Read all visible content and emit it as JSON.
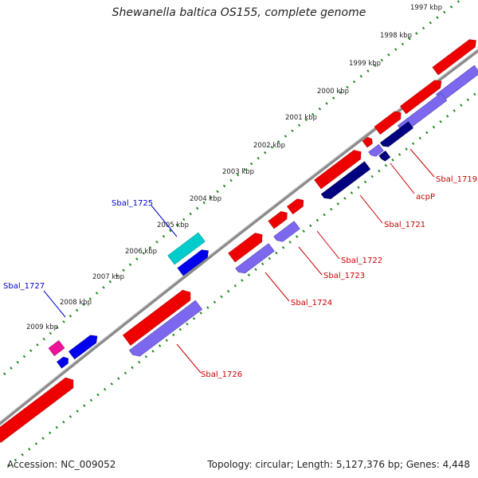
{
  "header": {
    "title": "Shewanella baltica OS155, complete genome"
  },
  "footer": {
    "accession": "Accession: NC_009052",
    "summary": "Topology: circular; Length: 5,127,376 bp; Genes: 4,448"
  },
  "ruler": [
    {
      "label": "1997 kbp"
    },
    {
      "label": "1998 kbp"
    },
    {
      "label": "1999 kbp"
    },
    {
      "label": "2000 kbp"
    },
    {
      "label": "2001 kbp"
    },
    {
      "label": "2002 kbp"
    },
    {
      "label": "2003 kbp"
    },
    {
      "label": "2004 kbp"
    },
    {
      "label": "2005 kbp"
    },
    {
      "label": "2006 kbp"
    },
    {
      "label": "2007 kbp"
    },
    {
      "label": "2008 kbp"
    },
    {
      "label": "2009 kbp"
    }
  ],
  "gene_labels": {
    "sbal_1719": "Sbal_1719",
    "acpP": "acpP",
    "sbal_1721": "Sbal_1721",
    "sbal_1722": "Sbal_1722",
    "sbal_1723": "Sbal_1723",
    "sbal_1724": "Sbal_1724",
    "sbal_1725": "Sbal_1725",
    "sbal_1726": "Sbal_1726",
    "sbal_1727": "Sbal_1727"
  },
  "colors": {
    "cds_forward": "#ee0000",
    "cds_reverse": "#7b68ee",
    "dark_feature": "#000080",
    "blue_feature": "#0000ee",
    "cyan_feature": "#00cccc",
    "pink_feature": "#ee1199",
    "backbone": "#808080",
    "ruler_ticks": "#228b22",
    "label_red": "#cc0000",
    "label_blue": "#0000cc"
  }
}
